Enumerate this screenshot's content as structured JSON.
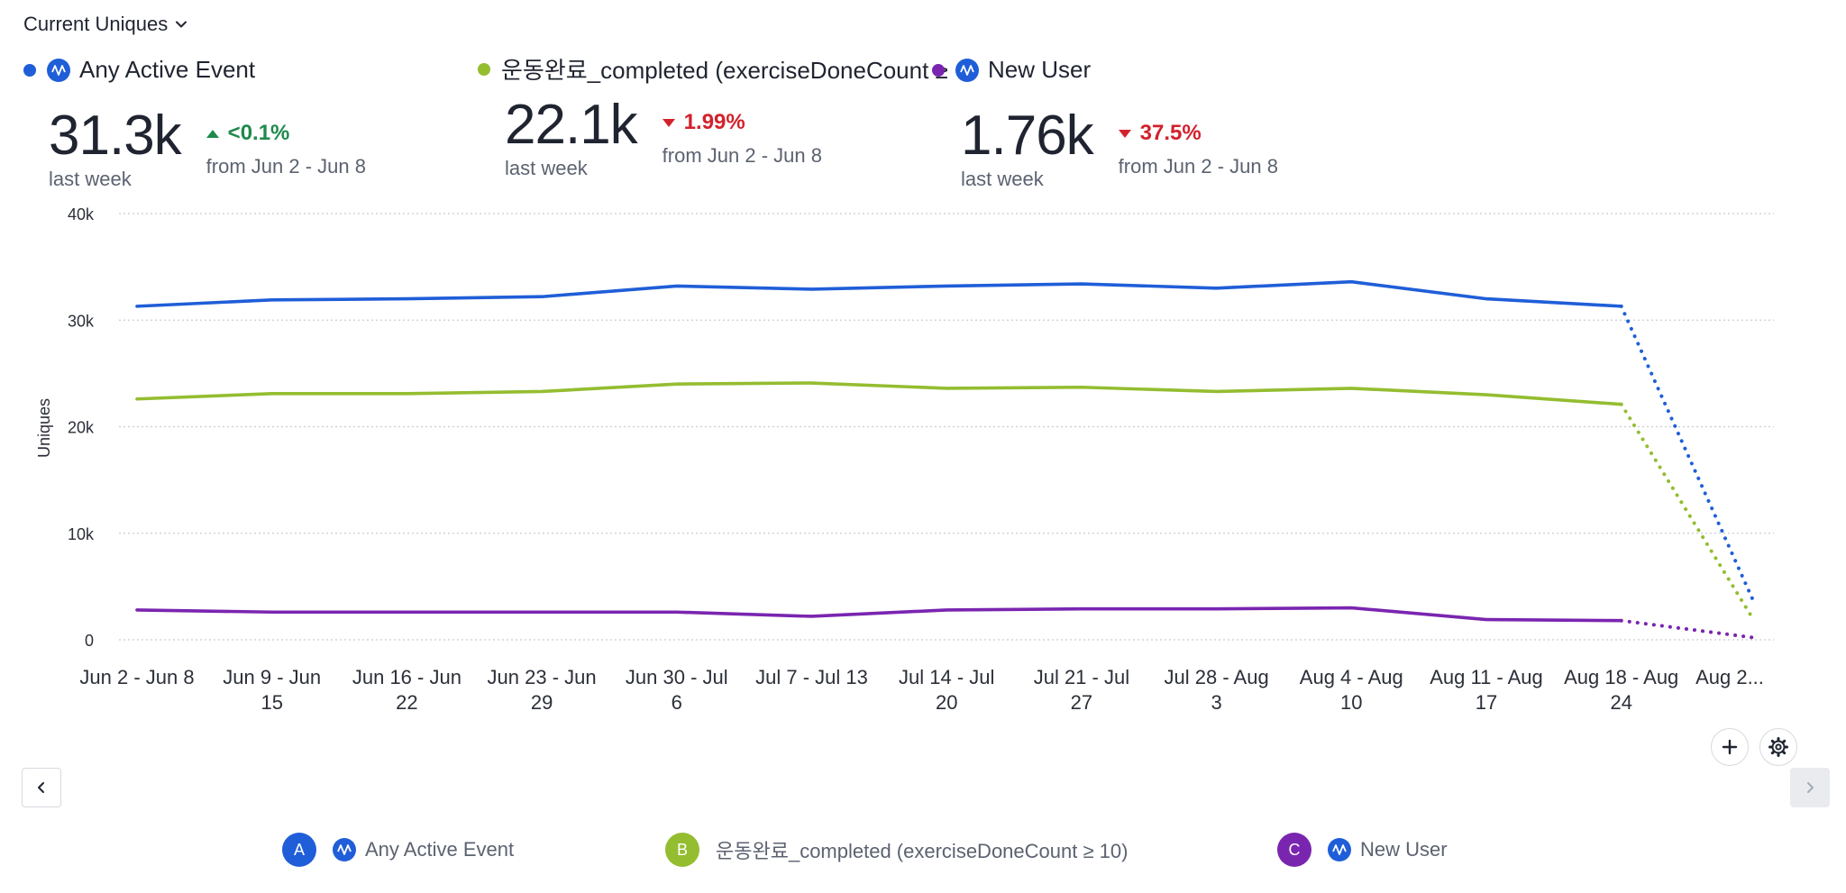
{
  "header": {
    "metric_label": "Current Uniques"
  },
  "kpis": [
    {
      "name": "Any Active Event",
      "value": "31.3k",
      "period": "last week",
      "change": "<0.1%",
      "direction": "up",
      "from": "from Jun 2 - Jun 8",
      "color": "#1f5ed8",
      "has_event_icon": true
    },
    {
      "name": "운동완료_completed (exerciseDoneCount ≥",
      "value": "22.1k",
      "period": "last week",
      "change": "1.99%",
      "direction": "down",
      "from": "from Jun 2 - Jun 8",
      "color": "#94bd30",
      "has_event_icon": false
    },
    {
      "name": "New User",
      "value": "1.76k",
      "period": "last week",
      "change": "37.5%",
      "direction": "down",
      "from": "from Jun 2 - Jun 8",
      "color": "#7a25b0",
      "has_event_icon": true
    }
  ],
  "chart_data": {
    "type": "line",
    "ylabel": "Uniques",
    "ylim": [
      0,
      40000
    ],
    "yticks": [
      {
        "value": 0,
        "label": "0"
      },
      {
        "value": 10000,
        "label": "10k"
      },
      {
        "value": 20000,
        "label": "20k"
      },
      {
        "value": 30000,
        "label": "30k"
      },
      {
        "value": 40000,
        "label": "40k"
      }
    ],
    "categories": [
      [
        "Jun 2 - Jun 8"
      ],
      [
        "Jun 9 - Jun",
        "15"
      ],
      [
        "Jun 16 - Jun",
        "22"
      ],
      [
        "Jun 23 - Jun",
        "29"
      ],
      [
        "Jun 30 - Jul",
        "6"
      ],
      [
        "Jul 7 - Jul 13"
      ],
      [
        "Jul 14 - Jul",
        "20"
      ],
      [
        "Jul 21 - Jul",
        "27"
      ],
      [
        "Jul 28 - Aug",
        "3"
      ],
      [
        "Aug 4 - Aug",
        "10"
      ],
      [
        "Aug 11 - Aug",
        "17"
      ],
      [
        "Aug 18 - Aug",
        "24"
      ],
      [
        "Aug 2..."
      ]
    ],
    "incomplete_last_period": true,
    "series": [
      {
        "name": "Any Active Event",
        "color": "#1f5ed8",
        "values": [
          31300,
          31900,
          32000,
          32200,
          33200,
          32900,
          33200,
          33400,
          33000,
          33600,
          32000,
          31300,
          3500
        ]
      },
      {
        "name": "운동완료_completed (exerciseDoneCount ≥ 10)",
        "color": "#94bd30",
        "values": [
          22600,
          23100,
          23100,
          23300,
          24000,
          24100,
          23600,
          23700,
          23300,
          23600,
          23000,
          22100,
          1800
        ]
      },
      {
        "name": "New User",
        "color": "#7a25b0",
        "values": [
          2800,
          2600,
          2600,
          2600,
          2600,
          2200,
          2800,
          2900,
          2900,
          3000,
          1900,
          1800,
          200
        ]
      }
    ]
  },
  "legend": [
    {
      "letter": "A",
      "name": "Any Active Event",
      "color": "#1f5ed8",
      "has_event_icon": true
    },
    {
      "letter": "B",
      "name": "운동완료_completed (exerciseDoneCount ≥ 10)",
      "color": "#94bd30",
      "has_event_icon": false
    },
    {
      "letter": "C",
      "name": "New User",
      "color": "#7a25b0",
      "has_event_icon": true
    }
  ],
  "icons": {
    "metric_dropdown": "chevron-down-icon",
    "add": "plus-icon",
    "settings": "gear-icon",
    "prev": "chevron-left-icon",
    "next": "chevron-right-icon",
    "event": "event-wave-icon"
  }
}
